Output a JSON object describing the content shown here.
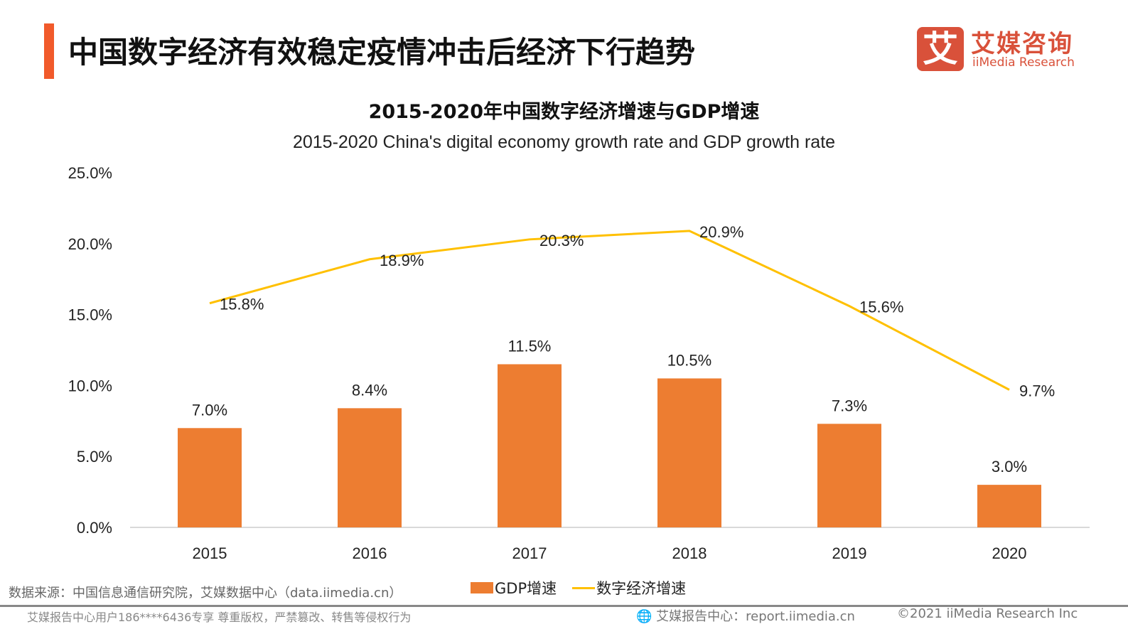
{
  "header": {
    "title": "中国数字经济有效稳定疫情冲击后经济下行趋势",
    "accent_color": "#f15a2b"
  },
  "logo": {
    "mark": "艾",
    "name_cn": "艾媒咨询",
    "name_en": "iiMedia Research",
    "color": "#d9513a"
  },
  "chart_data": {
    "type": "bar+line",
    "title": "2015-2020年中国数字经济增速与GDP增速",
    "subtitle": "2015-2020 China's digital economy growth rate and GDP growth rate",
    "categories": [
      "2015",
      "2016",
      "2017",
      "2018",
      "2019",
      "2020"
    ],
    "ylim": [
      0,
      25
    ],
    "yticks": [
      "0.0%",
      "5.0%",
      "10.0%",
      "15.0%",
      "20.0%",
      "25.0%"
    ],
    "grid": false,
    "legend_placement": "bottom",
    "series": [
      {
        "name": "GDP增速",
        "type": "bar",
        "color": "#ed7d31",
        "values": [
          7.0,
          8.4,
          11.5,
          10.5,
          7.3,
          3.0
        ],
        "labels": [
          "7.0%",
          "8.4%",
          "11.5%",
          "10.5%",
          "7.3%",
          "3.0%"
        ]
      },
      {
        "name": "数字经济增速",
        "type": "line",
        "color": "#ffc000",
        "values": [
          15.8,
          18.9,
          20.3,
          20.9,
          15.6,
          9.7
        ],
        "labels": [
          "15.8%",
          "18.9%",
          "20.3%",
          "20.9%",
          "15.6%",
          "9.7%"
        ]
      }
    ]
  },
  "source": "数据来源：中国信息通信研究院，艾媒数据中心（data.iimedia.cn）",
  "footer": {
    "left": "艾媒报告中心用户186****6436专享 尊重版权，严禁篡改、转售等侵权行为",
    "mid": "艾媒报告中心：report.iimedia.cn",
    "right": "©2021  iiMedia Research  Inc"
  }
}
